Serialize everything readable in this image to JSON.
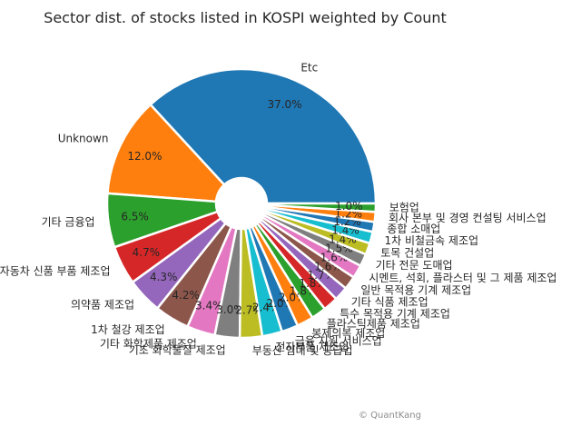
{
  "chart_data": {
    "type": "pie",
    "title": "Sector dist. of stocks listed in KOSPI weighted by Count",
    "watermark": "© QuantKang",
    "donut": true,
    "start_angle_deg": 0,
    "direction": "counterclockwise",
    "slices": [
      {
        "label": "Etc",
        "value": 37.0,
        "pct": "37.0%",
        "color": "#1f77b4"
      },
      {
        "label": "Unknown",
        "value": 12.0,
        "pct": "12.0%",
        "color": "#ff7f0e"
      },
      {
        "label": "기타 금융업",
        "value": 6.5,
        "pct": "6.5%",
        "color": "#2ca02c"
      },
      {
        "label": "자동차 신품 부품 제조업",
        "value": 4.7,
        "pct": "4.7%",
        "color": "#d62728"
      },
      {
        "label": "의약품 제조업",
        "value": 4.3,
        "pct": "4.3%",
        "color": "#9467bd"
      },
      {
        "label": "1차 철강 제조업",
        "value": 4.2,
        "pct": "4.2%",
        "color": "#8c564b"
      },
      {
        "label": "기타 화학제품 제조업",
        "value": 3.4,
        "pct": "3.4%",
        "color": "#e377c2"
      },
      {
        "label": "기초 화학물질 제조업",
        "value": 3.0,
        "pct": "3.0%",
        "color": "#7f7f7f"
      },
      {
        "label": "부동산 임대 및 공급업",
        "value": 2.7,
        "pct": "2.7%",
        "color": "#bcbd22"
      },
      {
        "label": "전자부품 제조업",
        "value": 2.4,
        "pct": "2.4%",
        "color": "#17becf"
      },
      {
        "label": "금융 지원 서비스업",
        "value": 2.0,
        "pct": "2.0%",
        "color": "#1f77b4"
      },
      {
        "label": "봉제의복 제조업",
        "value": 2.0,
        "pct": "2.0%",
        "color": "#ff7f0e"
      },
      {
        "label": "플라스틱제품 제조업",
        "value": 1.8,
        "pct": "1.8%",
        "color": "#2ca02c"
      },
      {
        "label": "특수 목적용 기계 제조업",
        "value": 1.8,
        "pct": "1.8%",
        "color": "#d62728"
      },
      {
        "label": "기타 식품 제조업",
        "value": 1.7,
        "pct": "1.7%",
        "color": "#9467bd"
      },
      {
        "label": "일반 목적용 기계 제조업",
        "value": 1.6,
        "pct": "1.6%",
        "color": "#8c564b"
      },
      {
        "label": "시멘트, 석회, 플라스터 및 그 제품 제조업",
        "value": 1.6,
        "pct": "1.6%",
        "color": "#e377c2"
      },
      {
        "label": "기타 전문 도매업",
        "value": 1.5,
        "pct": "1.5%",
        "color": "#7f7f7f"
      },
      {
        "label": "토목 건설업",
        "value": 1.4,
        "pct": "1.4%",
        "color": "#bcbd22"
      },
      {
        "label": "1차 비철금속 제조업",
        "value": 1.4,
        "pct": "1.4%",
        "color": "#17becf"
      },
      {
        "label": "종합 소매업",
        "value": 1.2,
        "pct": "1.2%",
        "color": "#1f77b4"
      },
      {
        "label": "회사 본부 및 경영 컨설팅 서비스업",
        "value": 1.2,
        "pct": "1.2%",
        "color": "#ff7f0e"
      },
      {
        "label": "보험업",
        "value": 1.0,
        "pct": "1.0%",
        "color": "#2ca02c"
      }
    ]
  }
}
